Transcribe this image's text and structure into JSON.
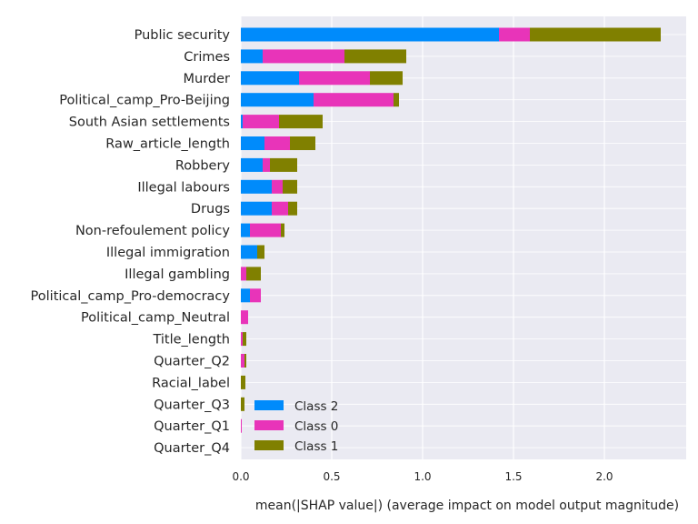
{
  "chart_data": {
    "type": "bar",
    "orientation": "horizontal",
    "stacked": true,
    "title": "",
    "xlabel": "mean(|SHAP value|) (average impact on model output magnitude)",
    "ylabel": "",
    "xlim": [
      0,
      2.45
    ],
    "xticks": [
      "0.0",
      "0.5",
      "1.0",
      "1.5",
      "2.0"
    ],
    "grid": true,
    "legend_position": "lower-left inside plot",
    "categories": [
      "Public security",
      "Crimes",
      "Murder",
      "Political_camp_Pro-Beijing",
      "South Asian settlements",
      "Raw_article_length",
      "Robbery",
      "Illegal labours",
      "Drugs",
      "Non-refoulement policy",
      "Illegal immigration",
      "Illegal gambling",
      "Political_camp_Pro-democracy",
      "Political_camp_Neutral",
      "Title_length",
      "Quarter_Q2",
      "Racial_label",
      "Quarter_Q3",
      "Quarter_Q1",
      "Quarter_Q4"
    ],
    "series": [
      {
        "name": "Class 2",
        "color": "#008bfb",
        "values": [
          1.42,
          0.12,
          0.32,
          0.4,
          0.01,
          0.13,
          0.12,
          0.17,
          0.17,
          0.05,
          0.09,
          0.0,
          0.05,
          0.0,
          0.0,
          0.0,
          0.0,
          0.0,
          0.0,
          0.0
        ]
      },
      {
        "name": "Class 0",
        "color": "#e834b9",
        "values": [
          0.17,
          0.45,
          0.39,
          0.44,
          0.2,
          0.14,
          0.04,
          0.06,
          0.09,
          0.17,
          0.0,
          0.03,
          0.06,
          0.04,
          0.01,
          0.02,
          0.0,
          0.0,
          0.005,
          0.0
        ]
      },
      {
        "name": "Class 1",
        "color": "#808000",
        "values": [
          0.72,
          0.34,
          0.18,
          0.03,
          0.24,
          0.14,
          0.15,
          0.08,
          0.05,
          0.02,
          0.04,
          0.08,
          0.0,
          0.0,
          0.02,
          0.01,
          0.025,
          0.02,
          0.0,
          0.0
        ]
      }
    ],
    "legend_order": [
      "Class 2",
      "Class 0",
      "Class 1"
    ]
  }
}
